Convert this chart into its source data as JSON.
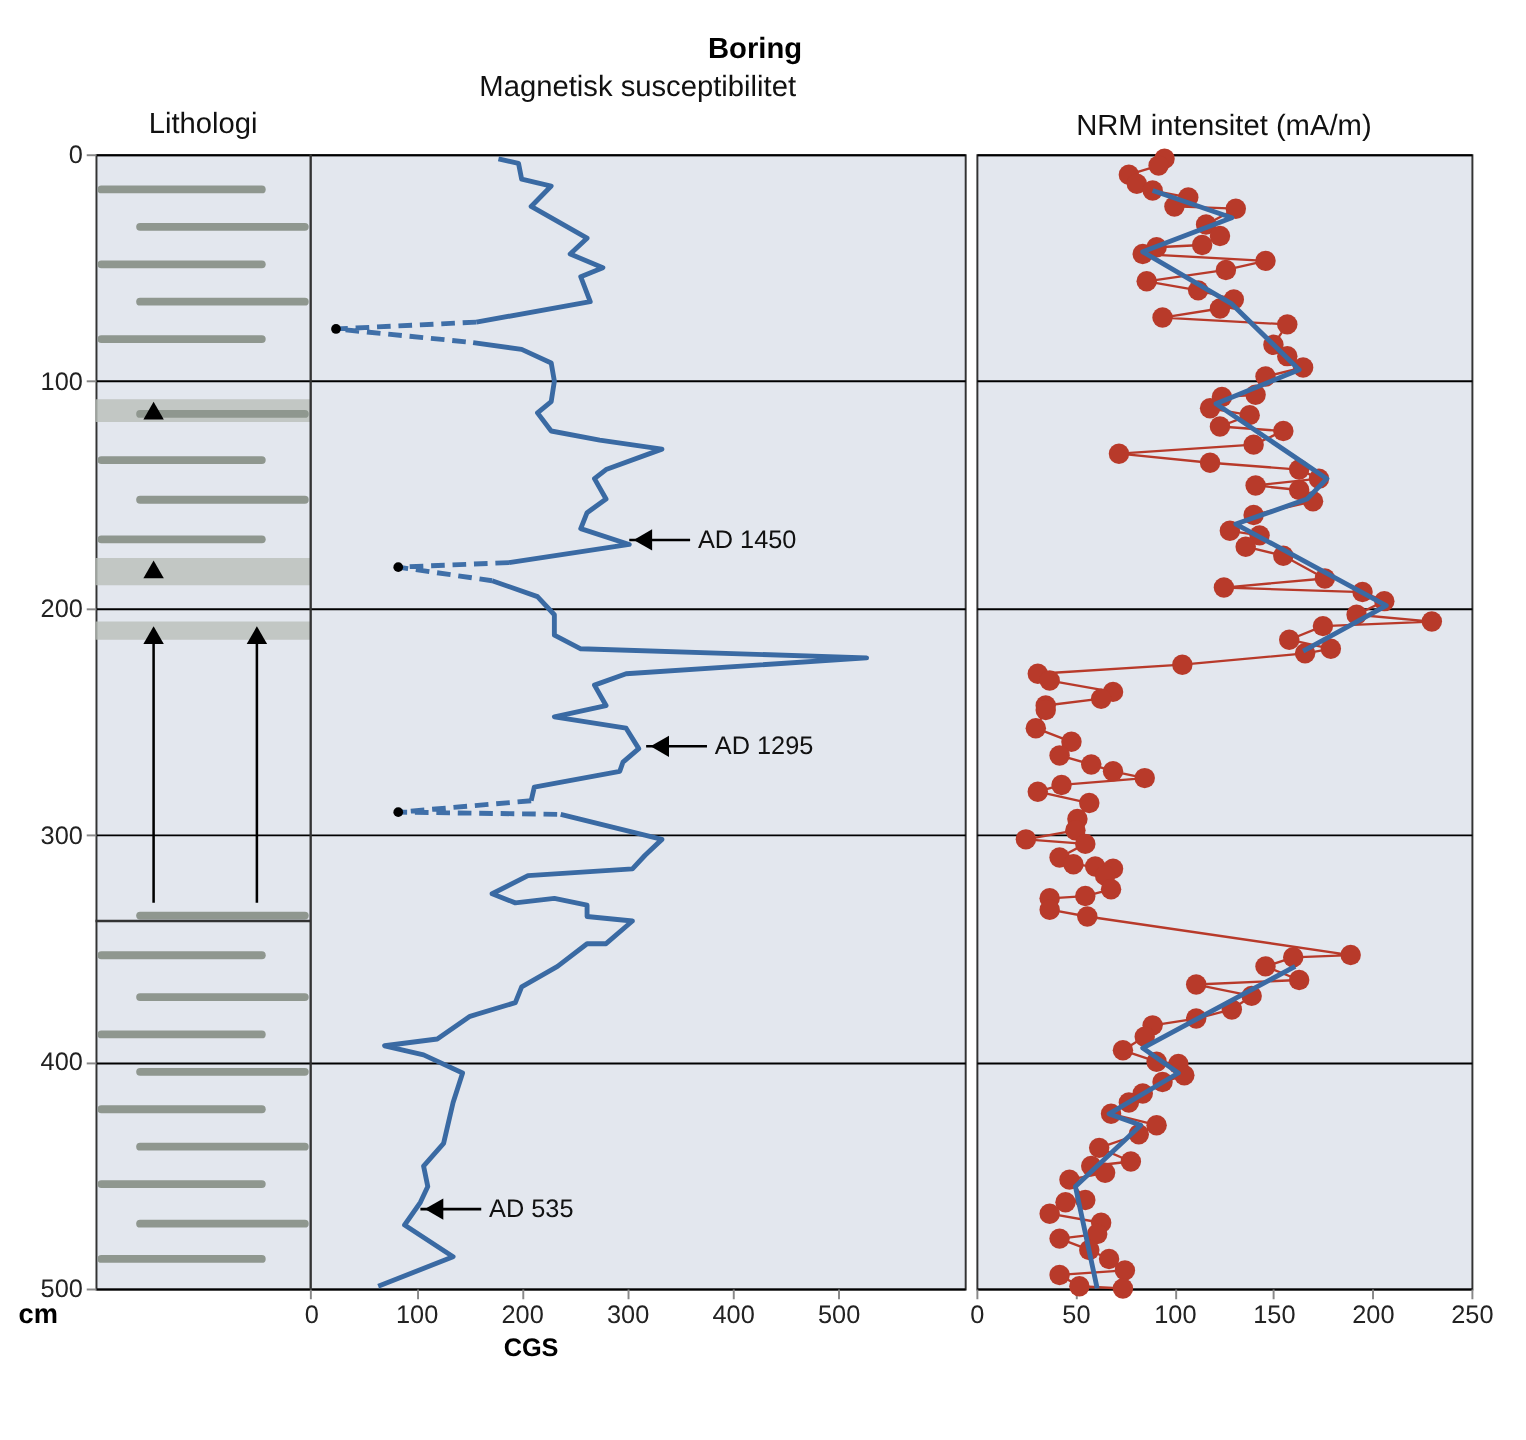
{
  "chart_data": [
    {
      "type": "line",
      "title": "Magnetisk susceptibilitet",
      "xlabel": "CGS",
      "ylabel": "cm",
      "xlim": [
        -204,
        620
      ],
      "ref_lines": [
        {
          "axis": "x",
          "value": 0,
          "color": "#333333"
        }
      ],
      "xticks": [
        0,
        100,
        200,
        300,
        400,
        500
      ],
      "ylim": [
        500,
        0
      ],
      "yticks": [
        0,
        100,
        200,
        300,
        400,
        500
      ],
      "grid": "y",
      "series": [
        {
          "type": "line",
          "color": "#3a6aa3",
          "line_style": "solid",
          "marker": "none",
          "x": [
            178,
            197,
            200,
            228,
            209,
            262,
            246,
            277,
            256,
            265,
            157,
            null,
            154,
            200,
            228,
            231,
            228,
            215,
            228,
            274,
            333,
            280,
            269,
            280,
            262,
            256,
            302,
            188,
            null,
            172,
            215,
            231,
            231,
            256,
            527,
            299,
            269,
            280,
            231,
            299,
            311,
            296,
            293,
            212,
            209,
            null,
            237,
            333,
            317,
            305,
            206,
            172,
            194,
            231,
            262,
            262,
            305,
            280,
            262,
            234,
            200,
            194,
            151,
            120,
            70,
            107,
            144,
            135,
            126,
            107,
            111,
            104,
            89,
            135,
            64
          ],
          "values": [
            2,
            4,
            11,
            14,
            23,
            37,
            44,
            50,
            54,
            65,
            74,
            null,
            83,
            86,
            92,
            100,
            109,
            114,
            122,
            126,
            130,
            139,
            143,
            152,
            158,
            165,
            172,
            180,
            null,
            188,
            195,
            203,
            212,
            218,
            222,
            229,
            234,
            243,
            248,
            253,
            262,
            268,
            272,
            279,
            285,
            null,
            291,
            302,
            309,
            315,
            318,
            326,
            330,
            328,
            331,
            336,
            338,
            348,
            348,
            358,
            367,
            374,
            380,
            390,
            393,
            397,
            405,
            418,
            436,
            446,
            455,
            462,
            472,
            486,
            499
          ]
        },
        {
          "type": "line",
          "color": "#3f6fa8",
          "line_style": "dashed",
          "marker": "none",
          "x": [
            157,
            24,
            154,
            null,
            188,
            83,
            172,
            null,
            209,
            83,
            237
          ],
          "values": [
            74,
            77,
            83,
            null,
            180,
            182,
            188,
            null,
            285,
            290,
            291
          ]
        },
        {
          "type": "scatter",
          "color": "#000000",
          "marker": "circle",
          "x": [
            24,
            83,
            83
          ],
          "values": [
            77,
            182,
            290
          ]
        }
      ],
      "annotations": [
        "Boring",
        "Lithologi",
        {
          "text": "AD 1450",
          "x": 302,
          "y": 170
        },
        {
          "text": "AD 1295",
          "x": 318,
          "y": 261
        },
        {
          "text": "AD 535",
          "x": 104,
          "y": 465
        }
      ]
    },
    {
      "type": "line",
      "title": "NRM intensitet (mA/m)",
      "xlim": [
        0,
        250
      ],
      "xticks": [
        0,
        50,
        100,
        150,
        200,
        250
      ],
      "ylim": [
        500,
        0
      ],
      "yticks": [
        0,
        100,
        200,
        300,
        400,
        500
      ],
      "grid": "y",
      "tick_labels": "x",
      "series": [
        {
          "type": "line",
          "color": "#b83a2a",
          "line_style": "solid",
          "marker": "circle",
          "x": [
            95,
            92,
            77,
            81,
            89,
            107,
            100,
            131,
            116,
            123,
            114,
            91,
            84,
            146,
            126,
            86,
            112,
            130,
            123,
            94,
            157,
            150,
            157,
            165,
            146,
            141,
            124,
            118,
            138,
            123,
            155,
            140,
            72,
            118,
            163,
            173,
            141,
            163,
            170,
            140,
            128,
            143,
            136,
            155,
            176,
            125,
            195,
            206,
            192,
            230,
            175,
            158,
            179,
            166,
            104,
            31,
            37,
            69,
            63,
            35,
            35,
            30,
            48,
            42,
            58,
            69,
            85,
            43,
            31,
            57,
            51,
            50,
            25,
            55,
            42,
            49,
            60,
            69,
            65,
            68,
            55,
            37,
            37,
            56,
            189,
            160,
            146,
            163,
            111,
            139,
            129,
            111,
            89,
            85,
            74,
            91,
            102,
            105,
            94,
            84,
            77,
            68,
            91,
            82,
            62,
            78,
            58,
            65,
            47,
            55,
            45,
            37,
            63,
            61,
            42,
            57,
            67,
            75,
            42,
            52,
            74
          ],
          "values": [
            2,
            5,
            9,
            13,
            16,
            19,
            23,
            24,
            31,
            36,
            40,
            41,
            44,
            47,
            51,
            56,
            60,
            64,
            68,
            72,
            75,
            84,
            89,
            94,
            98,
            106,
            107,
            112,
            115,
            120,
            122,
            128,
            132,
            136,
            139,
            143,
            146,
            148,
            153,
            159,
            166,
            168,
            173,
            177,
            187,
            191,
            193,
            197,
            203,
            206,
            208,
            214,
            218,
            220,
            225,
            229,
            232,
            237,
            240,
            243,
            245,
            253,
            259,
            265,
            269,
            272,
            275,
            278,
            281,
            286,
            293,
            298,
            302,
            304,
            310,
            313,
            314,
            315,
            318,
            324,
            327,
            328,
            333,
            336,
            353,
            354,
            358,
            364,
            366,
            371,
            377,
            381,
            384,
            389,
            395,
            400,
            401,
            406,
            409,
            414,
            418,
            423,
            428,
            432,
            438,
            444,
            446,
            449,
            452,
            461,
            462,
            467,
            471,
            476,
            478,
            483,
            487,
            492,
            494,
            499,
            500
          ]
        },
        {
          "type": "line",
          "color": "#3a6aa3",
          "line_style": "solid",
          "marker": "none",
          "x": [
            89,
            129,
            84,
            129,
            163,
            121,
            177,
            167,
            131,
            207,
            165,
            null,
            161,
            84,
            102,
            67,
            83,
            50,
            61
          ],
          "values": [
            16,
            28,
            43,
            66,
            95,
            110,
            143,
            152,
            163,
            199,
            219,
            null,
            358,
            394,
            405,
            423,
            428,
            455,
            500
          ]
        }
      ]
    }
  ]
}
